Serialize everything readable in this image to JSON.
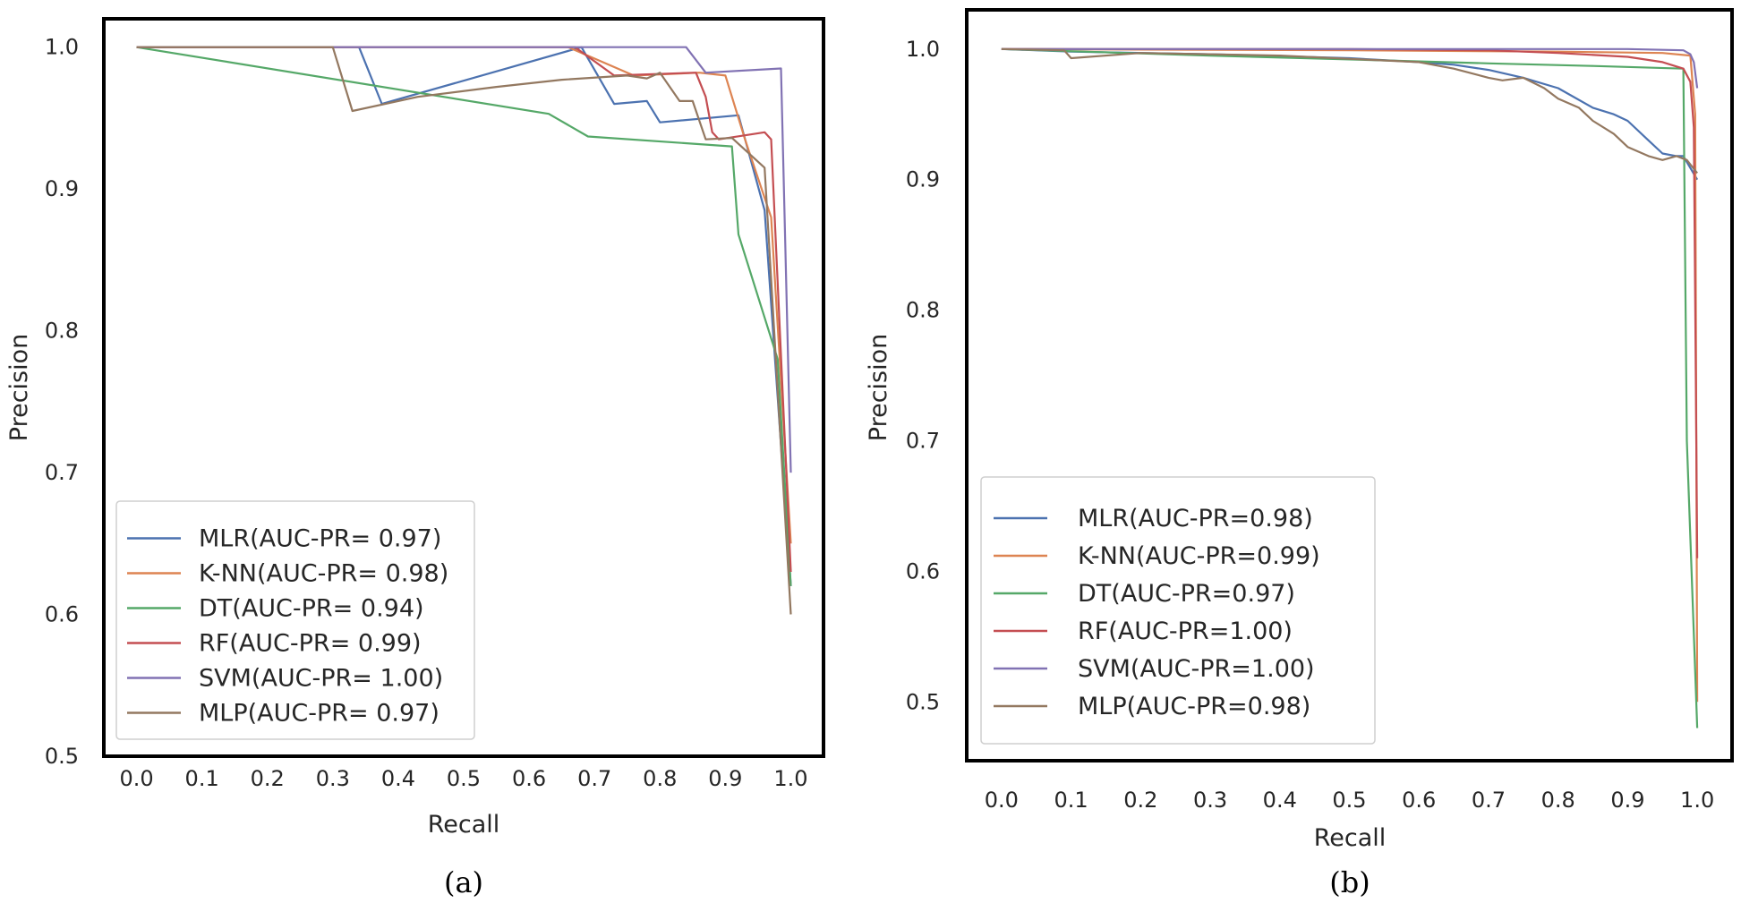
{
  "chart_data": [
    {
      "type": "line",
      "panel": "a",
      "caption": "(a)",
      "xlabel": "Recall",
      "ylabel": "Precision",
      "xlim": [
        -0.05,
        1.05
      ],
      "ylim": [
        0.5,
        1.02
      ],
      "xticks": [
        "0.0",
        "0.1",
        "0.2",
        "0.3",
        "0.4",
        "0.5",
        "0.6",
        "0.7",
        "0.8",
        "0.9",
        "1.0"
      ],
      "yticks": [
        "0.5",
        "0.6",
        "0.7",
        "0.8",
        "0.9",
        "1.0"
      ],
      "legend_position": "lower-left",
      "series": [
        {
          "name": "MLR(AUC-PR= 0.97)",
          "color": "#4c72b0",
          "x": [
            0,
            0.34,
            0.375,
            0.68,
            0.73,
            0.78,
            0.8,
            0.92,
            0.96,
            1.0
          ],
          "y": [
            1.0,
            1.0,
            0.96,
            1.0,
            0.96,
            0.962,
            0.947,
            0.952,
            0.885,
            0.62
          ]
        },
        {
          "name": "K-NN(AUC-PR= 0.98)",
          "color": "#dd8452",
          "x": [
            0,
            0.66,
            0.76,
            0.86,
            0.9,
            0.93,
            0.97,
            1.0
          ],
          "y": [
            1.0,
            1.0,
            0.98,
            0.982,
            0.98,
            0.935,
            0.88,
            0.65
          ]
        },
        {
          "name": "DT(AUC-PR= 0.94)",
          "color": "#55a868",
          "x": [
            0,
            0.63,
            0.69,
            0.91,
            0.92,
            0.98,
            1.0
          ],
          "y": [
            1.0,
            0.953,
            0.937,
            0.93,
            0.868,
            0.78,
            0.62
          ]
        },
        {
          "name": "RF(AUC-PR= 0.99)",
          "color": "#c44e52",
          "x": [
            0,
            0.67,
            0.73,
            0.855,
            0.87,
            0.88,
            0.89,
            0.96,
            0.97,
            1.0
          ],
          "y": [
            1.0,
            1.0,
            0.98,
            0.982,
            0.965,
            0.94,
            0.935,
            0.94,
            0.935,
            0.63
          ]
        },
        {
          "name": "SVM(AUC-PR= 1.00)",
          "color": "#8172b3",
          "x": [
            0,
            0.84,
            0.87,
            0.985,
            1.0
          ],
          "y": [
            1.0,
            1.0,
            0.982,
            0.985,
            0.7
          ]
        },
        {
          "name": "MLP(AUC-PR= 0.97)",
          "color": "#937860",
          "x": [
            0,
            0.3,
            0.33,
            0.43,
            0.55,
            0.65,
            0.75,
            0.78,
            0.8,
            0.83,
            0.85,
            0.87,
            0.91,
            0.96,
            1.0
          ],
          "y": [
            1.0,
            1.0,
            0.955,
            0.965,
            0.972,
            0.977,
            0.98,
            0.978,
            0.982,
            0.962,
            0.962,
            0.935,
            0.936,
            0.915,
            0.6
          ]
        }
      ]
    },
    {
      "type": "line",
      "panel": "b",
      "caption": "(b)",
      "xlabel": "Recall",
      "ylabel": "Precision",
      "xlim": [
        -0.05,
        1.05
      ],
      "ylim": [
        0.455,
        1.03
      ],
      "xticks": [
        "0.0",
        "0.1",
        "0.2",
        "0.3",
        "0.4",
        "0.5",
        "0.6",
        "0.7",
        "0.8",
        "0.9",
        "1.0"
      ],
      "yticks": [
        "0.5",
        "0.6",
        "0.7",
        "0.8",
        "0.9",
        "1.0"
      ],
      "legend_position": "lower-left",
      "series": [
        {
          "name": "MLR(AUC-PR=0.98)",
          "color": "#4c72b0",
          "x": [
            0,
            0.1,
            0.3,
            0.5,
            0.6,
            0.65,
            0.7,
            0.75,
            0.8,
            0.85,
            0.88,
            0.9,
            0.93,
            0.95,
            0.97,
            0.98,
            1.0
          ],
          "y": [
            1.0,
            0.998,
            0.996,
            0.993,
            0.99,
            0.988,
            0.984,
            0.978,
            0.97,
            0.955,
            0.95,
            0.945,
            0.93,
            0.92,
            0.918,
            0.918,
            0.9
          ]
        },
        {
          "name": "K-NN(AUC-PR=0.99)",
          "color": "#dd8452",
          "x": [
            0,
            0.5,
            0.8,
            0.95,
            0.99,
            0.997,
            1.0
          ],
          "y": [
            1.0,
            0.999,
            0.998,
            0.997,
            0.995,
            0.95,
            0.5
          ]
        },
        {
          "name": "DT(AUC-PR=0.97)",
          "color": "#55a868",
          "x": [
            0,
            0.3,
            0.5,
            0.7,
            0.85,
            0.98,
            0.985,
            1.0
          ],
          "y": [
            1.0,
            0.995,
            0.992,
            0.989,
            0.987,
            0.985,
            0.7,
            0.48
          ]
        },
        {
          "name": "RF(AUC-PR=1.00)",
          "color": "#c44e52",
          "x": [
            0,
            0.5,
            0.7,
            0.8,
            0.9,
            0.95,
            0.98,
            0.99,
            0.995,
            1.0
          ],
          "y": [
            1.0,
            1.0,
            0.999,
            0.997,
            0.994,
            0.99,
            0.985,
            0.975,
            0.94,
            0.61
          ]
        },
        {
          "name": "SVM(AUC-PR=1.00)",
          "color": "#8172b3",
          "x": [
            0,
            0.5,
            0.9,
            0.98,
            0.99,
            0.995,
            1.0
          ],
          "y": [
            1.0,
            1.0,
            1.0,
            0.999,
            0.996,
            0.99,
            0.97
          ]
        },
        {
          "name": "MLP(AUC-PR=0.98)",
          "color": "#937860",
          "x": [
            0,
            0.09,
            0.1,
            0.2,
            0.4,
            0.6,
            0.65,
            0.7,
            0.72,
            0.75,
            0.78,
            0.8,
            0.83,
            0.85,
            0.88,
            0.9,
            0.93,
            0.95,
            0.97,
            0.985,
            1.0
          ],
          "y": [
            1.0,
            0.999,
            0.993,
            0.997,
            0.995,
            0.99,
            0.985,
            0.978,
            0.976,
            0.978,
            0.97,
            0.962,
            0.955,
            0.945,
            0.935,
            0.925,
            0.918,
            0.915,
            0.918,
            0.915,
            0.905
          ]
        }
      ]
    }
  ]
}
